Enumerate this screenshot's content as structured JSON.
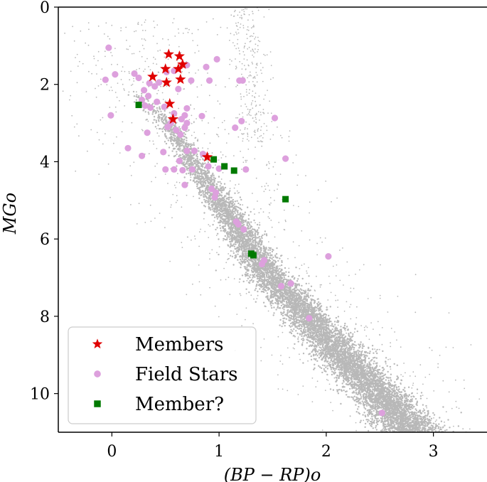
{
  "chart_data": {
    "type": "scatter",
    "title": "",
    "xlabel": "(BP − RP)o",
    "ylabel": "MGo",
    "xlim": [
      -0.5,
      3.5
    ],
    "ylim": [
      11,
      0
    ],
    "y_inverted": true,
    "xticks": [
      0,
      1,
      2,
      3
    ],
    "xtick_labels": [
      "0",
      "1",
      "2",
      "3"
    ],
    "yticks": [
      0,
      2,
      4,
      6,
      8,
      10
    ],
    "ytick_labels": [
      "0",
      "2",
      "4",
      "6",
      "8",
      "10"
    ],
    "grid": false,
    "legend_position": "lower-left",
    "background_population": {
      "description": "dense main-sequence cloud of background stars",
      "color": "#000000",
      "track": [
        [
          0.25,
          2.3
        ],
        [
          0.45,
          2.8
        ],
        [
          0.6,
          3.3
        ],
        [
          0.7,
          3.8
        ],
        [
          0.85,
          4.4
        ],
        [
          1.0,
          5.0
        ],
        [
          1.15,
          5.6
        ],
        [
          1.3,
          6.3
        ],
        [
          1.45,
          6.9
        ],
        [
          1.65,
          7.5
        ],
        [
          1.85,
          8.1
        ],
        [
          2.05,
          8.7
        ],
        [
          2.25,
          9.3
        ],
        [
          2.45,
          9.9
        ],
        [
          2.65,
          10.5
        ],
        [
          2.8,
          11.0
        ]
      ]
    },
    "series": [
      {
        "name": "Members",
        "marker": "star",
        "color": "#e00000",
        "points": [
          {
            "x": 0.53,
            "y": 1.22
          },
          {
            "x": 0.63,
            "y": 1.27
          },
          {
            "x": 0.66,
            "y": 1.48
          },
          {
            "x": 0.5,
            "y": 1.6
          },
          {
            "x": 0.62,
            "y": 1.6
          },
          {
            "x": 0.38,
            "y": 1.8
          },
          {
            "x": 0.64,
            "y": 1.87
          },
          {
            "x": 0.51,
            "y": 1.95
          },
          {
            "x": 0.54,
            "y": 2.5
          },
          {
            "x": 0.57,
            "y": 2.9
          },
          {
            "x": 0.89,
            "y": 3.88
          }
        ]
      },
      {
        "name": "Field Stars",
        "marker": "circle",
        "color": "#dda0dd",
        "points": [
          {
            "x": -0.03,
            "y": 1.05
          },
          {
            "x": 0.98,
            "y": 1.35
          },
          {
            "x": 0.88,
            "y": 1.55
          },
          {
            "x": 0.7,
            "y": 1.5
          },
          {
            "x": 0.58,
            "y": 1.65
          },
          {
            "x": 0.51,
            "y": 1.68
          },
          {
            "x": 0.21,
            "y": 1.72
          },
          {
            "x": 0.03,
            "y": 1.74
          },
          {
            "x": 0.25,
            "y": 1.83
          },
          {
            "x": -0.06,
            "y": 1.88
          },
          {
            "x": 0.44,
            "y": 1.95
          },
          {
            "x": 0.35,
            "y": 1.97
          },
          {
            "x": 0.4,
            "y": 2.05
          },
          {
            "x": 0.74,
            "y": 1.9
          },
          {
            "x": 0.91,
            "y": 1.9
          },
          {
            "x": 1.19,
            "y": 1.9
          },
          {
            "x": 1.22,
            "y": 1.9
          },
          {
            "x": 0.3,
            "y": 2.15
          },
          {
            "x": 0.62,
            "y": 2.12
          },
          {
            "x": 0.34,
            "y": 2.3
          },
          {
            "x": 0.28,
            "y": 2.4
          },
          {
            "x": 0.42,
            "y": 2.45
          },
          {
            "x": 0.36,
            "y": 2.6
          },
          {
            "x": 0.49,
            "y": 2.58
          },
          {
            "x": 0.31,
            "y": 2.55
          },
          {
            "x": 0.58,
            "y": 2.75
          },
          {
            "x": 0.7,
            "y": 2.62
          },
          {
            "x": 0.68,
            "y": 2.8
          },
          {
            "x": 0.65,
            "y": 2.9
          },
          {
            "x": 0.7,
            "y": 3.0
          },
          {
            "x": 0.55,
            "y": 3.0
          },
          {
            "x": 0.52,
            "y": 3.1
          },
          {
            "x": 0.6,
            "y": 3.18
          },
          {
            "x": 0.68,
            "y": 3.12
          },
          {
            "x": 0.84,
            "y": 2.82
          },
          {
            "x": -0.01,
            "y": 2.8
          },
          {
            "x": 0.33,
            "y": 3.25
          },
          {
            "x": 1.15,
            "y": 3.12
          },
          {
            "x": 1.21,
            "y": 2.95
          },
          {
            "x": 1.52,
            "y": 2.87
          },
          {
            "x": 0.64,
            "y": 3.3
          },
          {
            "x": 0.15,
            "y": 3.65
          },
          {
            "x": 0.48,
            "y": 3.75
          },
          {
            "x": 0.7,
            "y": 3.72
          },
          {
            "x": 0.77,
            "y": 3.72
          },
          {
            "x": 0.85,
            "y": 3.8
          },
          {
            "x": 0.28,
            "y": 3.85
          },
          {
            "x": 1.62,
            "y": 3.92
          },
          {
            "x": 0.63,
            "y": 3.98
          },
          {
            "x": 0.9,
            "y": 4.12
          },
          {
            "x": 0.5,
            "y": 4.2
          },
          {
            "x": 0.58,
            "y": 4.2
          },
          {
            "x": 0.66,
            "y": 4.22
          },
          {
            "x": 0.75,
            "y": 4.2
          },
          {
            "x": 1.0,
            "y": 4.18
          },
          {
            "x": 1.25,
            "y": 4.2
          },
          {
            "x": 0.68,
            "y": 4.6
          },
          {
            "x": 0.93,
            "y": 4.7
          },
          {
            "x": 0.97,
            "y": 4.8
          },
          {
            "x": 0.96,
            "y": 4.92
          },
          {
            "x": 1.16,
            "y": 5.55
          },
          {
            "x": 1.18,
            "y": 5.62
          },
          {
            "x": 1.23,
            "y": 5.75
          },
          {
            "x": 1.3,
            "y": 6.38
          },
          {
            "x": 1.42,
            "y": 6.55
          },
          {
            "x": 1.4,
            "y": 6.65
          },
          {
            "x": 2.02,
            "y": 6.45
          },
          {
            "x": 1.67,
            "y": 7.15
          },
          {
            "x": 1.58,
            "y": 7.22
          },
          {
            "x": 1.84,
            "y": 8.05
          },
          {
            "x": 2.52,
            "y": 10.5
          }
        ]
      },
      {
        "name": "Member?",
        "marker": "square",
        "color": "#007a00",
        "points": [
          {
            "x": 0.25,
            "y": 2.53
          },
          {
            "x": 0.95,
            "y": 3.94
          },
          {
            "x": 1.05,
            "y": 4.12
          },
          {
            "x": 1.14,
            "y": 4.23
          },
          {
            "x": 1.62,
            "y": 4.97
          },
          {
            "x": 1.3,
            "y": 6.38
          },
          {
            "x": 1.32,
            "y": 6.42
          }
        ]
      }
    ]
  }
}
